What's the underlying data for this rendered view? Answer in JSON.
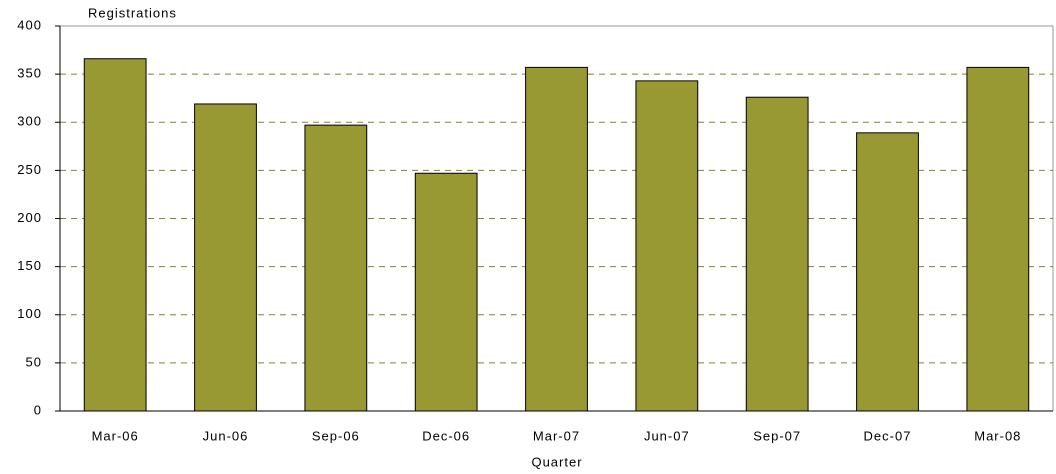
{
  "chart_data": {
    "type": "bar",
    "y_label": "Registrations",
    "x_label": "Quarter",
    "categories": [
      "Mar-06",
      "Jun-06",
      "Sep-06",
      "Dec-06",
      "Mar-07",
      "Jun-07",
      "Sep-07",
      "Dec-07",
      "Mar-08"
    ],
    "values": [
      366,
      319,
      297,
      247,
      357,
      343,
      326,
      289,
      357
    ],
    "color": "#999933",
    "ylim": [
      0,
      400
    ],
    "yticks": [
      0,
      50,
      100,
      150,
      200,
      250,
      300,
      350,
      400
    ],
    "grid": true
  }
}
